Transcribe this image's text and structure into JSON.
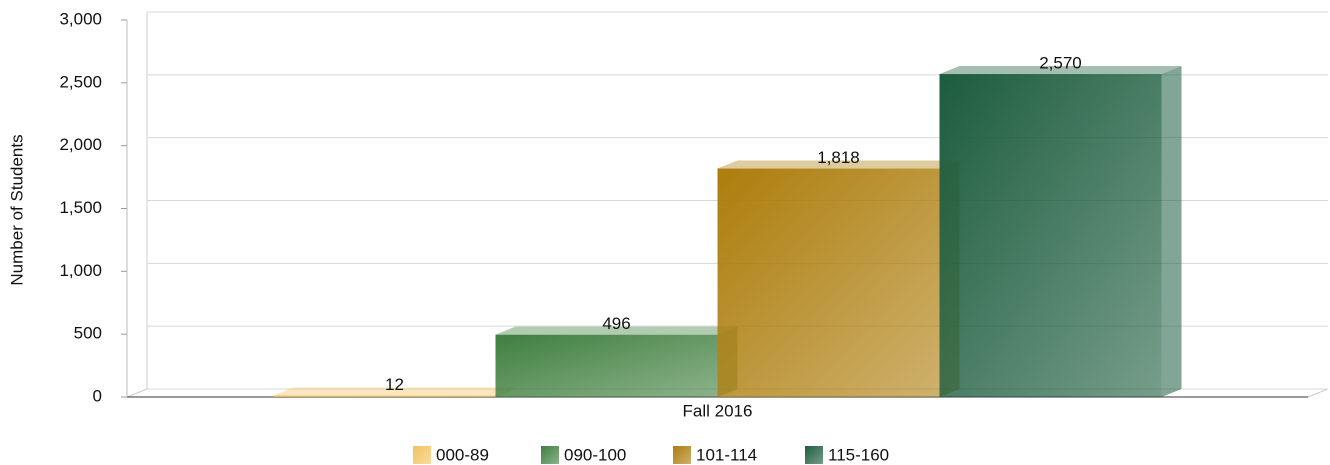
{
  "chart_data": {
    "type": "bar",
    "y_label": "Number of Students",
    "categories": [
      "Fall 2016"
    ],
    "series": [
      {
        "name": "000-89",
        "color": "#f2c35e",
        "values": [
          12
        ],
        "value_labels": [
          "12"
        ]
      },
      {
        "name": "090-100",
        "color": "#3f7f3f",
        "values": [
          496
        ],
        "value_labels": [
          "496"
        ]
      },
      {
        "name": "101-114",
        "color": "#ad7d0c",
        "values": [
          1818
        ],
        "value_labels": [
          "1,818"
        ]
      },
      {
        "name": "115-160",
        "color": "#1c5c3e",
        "values": [
          2570
        ],
        "value_labels": [
          "2,570"
        ]
      }
    ],
    "ylim": [
      0,
      3000
    ],
    "yticks": [
      0,
      500,
      {
        "value": 1000,
        "label": "1,000"
      },
      {
        "value": 1500,
        "label": "1,500"
      },
      {
        "value": 2000,
        "label": "2,000"
      },
      {
        "value": 2500,
        "label": "2,500"
      },
      {
        "value": 3000,
        "label": "3,000"
      }
    ],
    "grid": true,
    "legend": "bottom"
  }
}
